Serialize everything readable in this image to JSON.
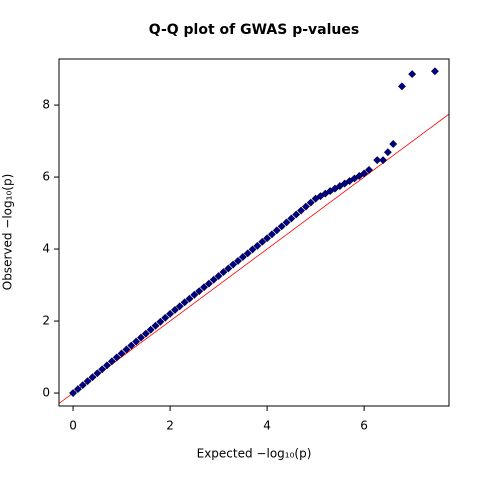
{
  "chart_data": {
    "type": "scatter",
    "title": "Q-Q plot of GWAS p-values",
    "xlabel": "Expected  −log₁₀(p)",
    "ylabel": "Observed  −log₁₀(p)",
    "x": [
      0,
      0.1,
      0.2,
      0.3,
      0.4,
      0.5,
      0.6,
      0.7,
      0.8,
      0.9,
      1.0,
      1.1,
      1.2,
      1.3,
      1.4,
      1.5,
      1.6,
      1.7,
      1.8,
      1.9,
      2.0,
      2.1,
      2.2,
      2.3,
      2.4,
      2.5,
      2.6,
      2.7,
      2.8,
      2.9,
      3.0,
      3.1,
      3.2,
      3.3,
      3.4,
      3.5,
      3.6,
      3.7,
      3.8,
      3.9,
      4.0,
      4.1,
      4.2,
      4.3,
      4.4,
      4.5,
      4.6,
      4.7,
      4.8,
      4.9,
      5.0,
      5.1,
      5.2,
      5.3,
      5.4,
      5.5,
      5.6,
      5.7,
      5.8,
      5.9,
      6.0,
      6.1,
      6.27,
      6.39,
      6.49,
      6.6,
      6.78,
      6.99,
      7.46
    ],
    "values": [
      0,
      0.11,
      0.22,
      0.33,
      0.44,
      0.55,
      0.66,
      0.77,
      0.88,
      0.99,
      1.1,
      1.21,
      1.32,
      1.43,
      1.54,
      1.65,
      1.76,
      1.87,
      1.98,
      2.09,
      2.2,
      2.31,
      2.41,
      2.52,
      2.62,
      2.73,
      2.83,
      2.94,
      3.04,
      3.15,
      3.25,
      3.36,
      3.46,
      3.57,
      3.67,
      3.78,
      3.88,
      3.99,
      4.09,
      4.2,
      4.3,
      4.41,
      4.52,
      4.63,
      4.74,
      4.85,
      4.96,
      5.07,
      5.18,
      5.29,
      5.4,
      5.47,
      5.54,
      5.61,
      5.68,
      5.75,
      5.82,
      5.89,
      5.96,
      6.03,
      6.1,
      6.2,
      6.47,
      6.47,
      6.69,
      6.92,
      8.52,
      8.86,
      8.94
    ],
    "color": "#00008b",
    "diagonal_color": "#ff0000",
    "xlim": [
      -0.29,
      7.75
    ],
    "ylim": [
      -0.36,
      9.28
    ],
    "xticks": [
      0,
      2,
      4,
      6
    ],
    "yticks": [
      0,
      2,
      4,
      6,
      8
    ],
    "grid": false
  }
}
